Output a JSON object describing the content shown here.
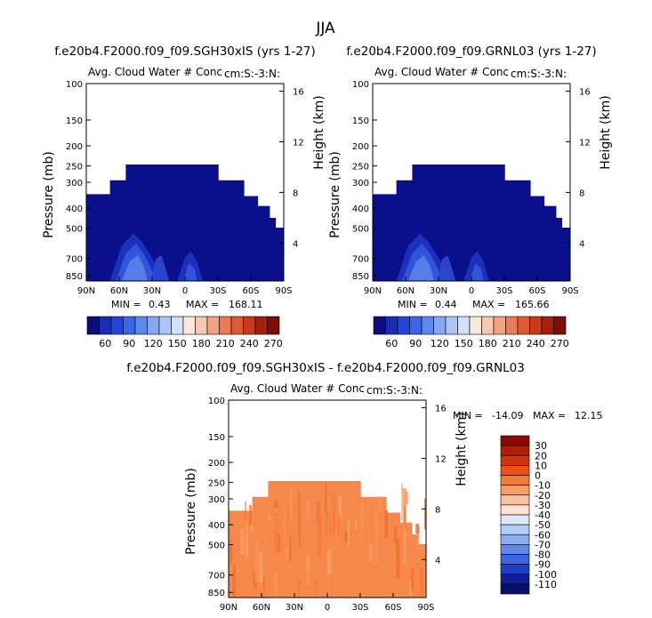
{
  "page_title": "JJA",
  "chart_data": [
    {
      "type": "heatmap",
      "title": "f.e20b4.F2000.f09_f09.SGH30xIS (yrs 1-27)",
      "subtitle_left": "Avg. Cloud Water # Conc",
      "subtitle_right": "cm:S:-3:N:",
      "ylabel": "Pressure (mb)",
      "ylabel_right": "Height (km)",
      "x_ticks": [
        "90N",
        "60N",
        "30N",
        "0",
        "30S",
        "60S",
        "90S"
      ],
      "y_ticks": [
        "100",
        "150",
        "200",
        "250",
        "300",
        "400",
        "500",
        "700",
        "850"
      ],
      "y_ticks_right": [
        "16",
        "12",
        "8",
        "4"
      ],
      "stats": {
        "min_label": "MIN =",
        "min": "0.43",
        "max_label": "MAX =",
        "max": "168.11"
      },
      "fill_color": "#0a0f8c",
      "colorbar": {
        "labels": [
          "60",
          "90",
          "120",
          "150",
          "180",
          "210",
          "240",
          "270"
        ],
        "colors": [
          "#0d0d7a",
          "#1a2cb5",
          "#2244d9",
          "#3a66e8",
          "#5e88ee",
          "#86a8f2",
          "#adc4f6",
          "#d2e0fa",
          "#fbe8dc",
          "#f7c8b0",
          "#f2a482",
          "#ea7b54",
          "#df5a31",
          "#c93a1b",
          "#a3200f",
          "#7a0d05"
        ]
      }
    },
    {
      "type": "heatmap",
      "title": "f.e20b4.F2000.f09_f09.GRNL03 (yrs 1-27)",
      "subtitle_left": "Avg. Cloud Water # Conc",
      "subtitle_right": "cm:S:-3:N:",
      "ylabel": "Pressure (mb)",
      "ylabel_right": "Height (km)",
      "x_ticks": [
        "90N",
        "60N",
        "30N",
        "0",
        "30S",
        "60S",
        "90S"
      ],
      "y_ticks": [
        "100",
        "150",
        "200",
        "250",
        "300",
        "400",
        "500",
        "700",
        "850"
      ],
      "y_ticks_right": [
        "16",
        "12",
        "8",
        "4"
      ],
      "stats": {
        "min_label": "MIN =",
        "min": "0.44",
        "max_label": "MAX =",
        "max": "165.66"
      },
      "fill_color": "#0a0f8c",
      "colorbar": {
        "labels": [
          "60",
          "90",
          "120",
          "150",
          "180",
          "210",
          "240",
          "270"
        ],
        "colors": [
          "#0d0d7a",
          "#1a2cb5",
          "#2244d9",
          "#3a66e8",
          "#5e88ee",
          "#86a8f2",
          "#adc4f6",
          "#d2e0fa",
          "#fbe8dc",
          "#f7c8b0",
          "#f2a482",
          "#ea7b54",
          "#df5a31",
          "#c93a1b",
          "#a3200f",
          "#7a0d05"
        ]
      }
    },
    {
      "type": "heatmap",
      "title": "f.e20b4.F2000.f09_f09.SGH30xIS - f.e20b4.F2000.f09_f09.GRNL03",
      "subtitle_left": "Avg. Cloud Water # Conc",
      "subtitle_right": "cm:S:-3:N:",
      "ylabel": "Pressure (mb)",
      "ylabel_right": "Height (km)",
      "x_ticks": [
        "90N",
        "60N",
        "30N",
        "0",
        "30S",
        "60S",
        "90S"
      ],
      "y_ticks": [
        "100",
        "150",
        "200",
        "250",
        "300",
        "400",
        "500",
        "700",
        "850"
      ],
      "y_ticks_right": [
        "16",
        "12",
        "8",
        "4"
      ],
      "stats": {
        "min_label": "MIN =",
        "min": "-14.09",
        "max_label": "MAX =",
        "max": "12.15"
      },
      "fill_color": "#f5884a",
      "colorbar": {
        "labels": [
          "30",
          "20",
          "10",
          "0",
          "-10",
          "-20",
          "-30",
          "-40",
          "-50",
          "-60",
          "-70",
          "-80",
          "-90",
          "-100",
          "-110"
        ],
        "colors": [
          "#8b0a00",
          "#b01e05",
          "#d5320a",
          "#f04f1a",
          "#f57a3e",
          "#f79d68",
          "#f9c2a0",
          "#fbe2d2",
          "#dde8fb",
          "#b4cbf6",
          "#8caef0",
          "#5f8aeb",
          "#3a64e2",
          "#1e3fc6",
          "#0f1f99",
          "#07106d"
        ]
      }
    }
  ]
}
